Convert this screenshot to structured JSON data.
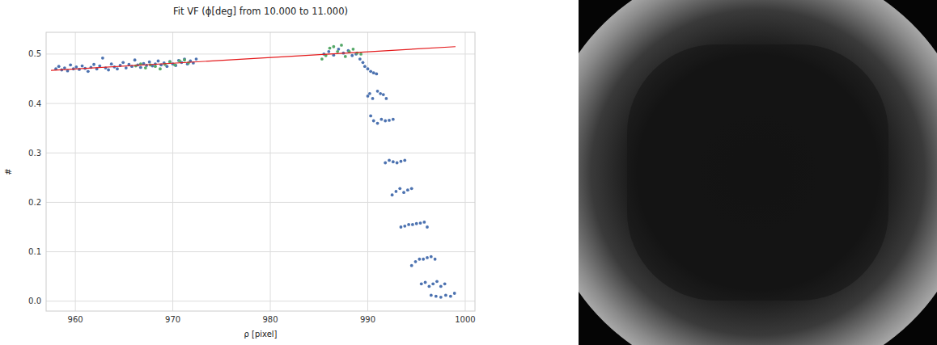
{
  "chart_data": {
    "type": "scatter",
    "title": "Fit VF (ϕ[deg] from 10.000 to 11.000)",
    "x_label": "ρ [pixel]",
    "y_label": "#",
    "xlim": [
      957,
      1001
    ],
    "ylim": [
      -0.02,
      0.544
    ],
    "xticks": [
      960,
      970,
      980,
      990,
      1000
    ],
    "yticks": [
      {
        "value": 0,
        "label": "0.0"
      },
      0.1,
      0.2,
      0.3,
      0.4,
      0.5
    ],
    "grid": true,
    "series": [
      {
        "type": "scatter",
        "color": "#4c72b0",
        "marker": "circle",
        "x": [
          958.0,
          958.3,
          958.6,
          958.9,
          959.2,
          959.5,
          959.8,
          960.1,
          960.4,
          960.7,
          961.0,
          961.3,
          961.6,
          961.9,
          962.2,
          962.5,
          962.8,
          963.1,
          963.4,
          963.7,
          964.0,
          964.3,
          964.6,
          964.9,
          965.2,
          965.5,
          965.8,
          966.1,
          966.4,
          966.7,
          967.0,
          967.3,
          967.6,
          967.9,
          968.2,
          968.5,
          968.8,
          969.1,
          969.4,
          969.7,
          970.0,
          970.3,
          970.6,
          970.9,
          971.2,
          971.5,
          971.8,
          972.1,
          972.4,
          985.5,
          986.0,
          986.5,
          987.0,
          987.5,
          988.0,
          988.4,
          988.8,
          989.2,
          989.5,
          989.7,
          990.0,
          990.3,
          990.6,
          990.9,
          990.0,
          990.2,
          990.5,
          991.0,
          991.3,
          991.6,
          991.9,
          990.3,
          990.6,
          991.0,
          991.4,
          991.8,
          992.2,
          992.6,
          991.8,
          992.2,
          992.6,
          993.0,
          993.4,
          993.8,
          992.5,
          992.9,
          993.3,
          993.7,
          994.1,
          994.5,
          993.4,
          993.8,
          994.2,
          994.6,
          995.0,
          995.4,
          995.8,
          996.1,
          994.5,
          994.9,
          995.3,
          995.7,
          996.1,
          996.5,
          996.9,
          995.5,
          995.9,
          996.3,
          996.7,
          997.1,
          997.5,
          997.9,
          996.5,
          997.0,
          997.5,
          998.0,
          998.5,
          998.9
        ],
        "values": [
          0.47,
          0.475,
          0.468,
          0.472,
          0.466,
          0.478,
          0.47,
          0.474,
          0.469,
          0.476,
          0.471,
          0.465,
          0.473,
          0.479,
          0.47,
          0.476,
          0.492,
          0.472,
          0.468,
          0.48,
          0.474,
          0.47,
          0.477,
          0.483,
          0.472,
          0.479,
          0.475,
          0.488,
          0.478,
          0.473,
          0.481,
          0.477,
          0.484,
          0.476,
          0.48,
          0.486,
          0.478,
          0.482,
          0.475,
          0.485,
          0.48,
          0.477,
          0.487,
          0.483,
          0.49,
          0.48,
          0.486,
          0.482,
          0.49,
          0.5,
          0.505,
          0.498,
          0.51,
          0.502,
          0.507,
          0.497,
          0.5,
          0.49,
          0.483,
          0.475,
          0.47,
          0.465,
          0.462,
          0.46,
          0.415,
          0.42,
          0.41,
          0.425,
          0.42,
          0.418,
          0.41,
          0.375,
          0.365,
          0.36,
          0.368,
          0.365,
          0.366,
          0.368,
          0.28,
          0.285,
          0.282,
          0.28,
          0.283,
          0.285,
          0.215,
          0.222,
          0.228,
          0.22,
          0.225,
          0.228,
          0.15,
          0.152,
          0.155,
          0.155,
          0.157,
          0.158,
          0.16,
          0.15,
          0.072,
          0.08,
          0.085,
          0.085,
          0.088,
          0.09,
          0.085,
          0.035,
          0.038,
          0.03,
          0.035,
          0.04,
          0.03,
          0.035,
          0.012,
          0.01,
          0.008,
          0.012,
          0.01,
          0.016
        ]
      },
      {
        "type": "scatter",
        "color": "#55a868",
        "marker": "circle",
        "x": [
          966.2,
          966.7,
          967.2,
          967.7,
          968.2,
          968.7,
          969.2,
          969.7,
          970.2,
          970.7,
          971.2,
          971.6,
          985.3,
          985.7,
          986.1,
          986.5,
          986.9,
          987.3,
          987.7,
          988.1,
          988.5,
          988.9,
          989.3
        ],
        "values": [
          0.476,
          0.48,
          0.472,
          0.478,
          0.475,
          0.47,
          0.479,
          0.484,
          0.478,
          0.486,
          0.488,
          0.482,
          0.49,
          0.497,
          0.512,
          0.515,
          0.505,
          0.518,
          0.495,
          0.505,
          0.51,
          0.502,
          0.5
        ]
      },
      {
        "type": "line",
        "color": "#e41a1c",
        "line_style": "solid",
        "x": [
          957.5,
          999.0
        ],
        "values": [
          0.467,
          0.515
        ]
      }
    ]
  }
}
